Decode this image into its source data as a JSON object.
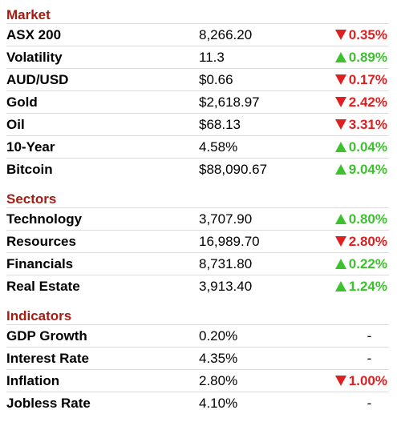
{
  "sections": [
    {
      "title": "Market",
      "rows": [
        {
          "name": "ASX 200",
          "value": "8,266.20",
          "direction": "down",
          "change": "0.35%"
        },
        {
          "name": "Volatility",
          "value": "11.3",
          "direction": "up",
          "change": "0.89%"
        },
        {
          "name": "AUD/USD",
          "value": "$0.66",
          "direction": "down",
          "change": "0.17%"
        },
        {
          "name": "Gold",
          "value": "$2,618.97",
          "direction": "down",
          "change": "2.42%"
        },
        {
          "name": "Oil",
          "value": "$68.13",
          "direction": "down",
          "change": "3.31%"
        },
        {
          "name": "10-Year",
          "value": "4.58%",
          "direction": "up",
          "change": "0.04%"
        },
        {
          "name": "Bitcoin",
          "value": "$88,090.67",
          "direction": "up",
          "change": "9.04%"
        }
      ]
    },
    {
      "title": "Sectors",
      "rows": [
        {
          "name": "Technology",
          "value": "3,707.90",
          "direction": "up",
          "change": "0.80%"
        },
        {
          "name": "Resources",
          "value": "16,989.70",
          "direction": "down",
          "change": "2.80%"
        },
        {
          "name": "Financials",
          "value": "8,731.80",
          "direction": "up",
          "change": "0.22%"
        },
        {
          "name": "Real Estate",
          "value": "3,913.40",
          "direction": "up",
          "change": "1.24%"
        }
      ]
    },
    {
      "title": "Indicators",
      "rows": [
        {
          "name": "GDP Growth",
          "value": "0.20%",
          "direction": "none",
          "change": "-"
        },
        {
          "name": "Interest Rate",
          "value": "4.35%",
          "direction": "none",
          "change": "-"
        },
        {
          "name": "Inflation",
          "value": "2.80%",
          "direction": "down",
          "change": "1.00%"
        },
        {
          "name": "Jobless Rate",
          "value": "4.10%",
          "direction": "none",
          "change": "-"
        }
      ]
    }
  ],
  "colors": {
    "section_title": "#a51c12",
    "down": "#e02020",
    "up": "#3bc22c"
  },
  "icons": {
    "down": "down-triangle-icon",
    "up": "up-triangle-icon"
  }
}
